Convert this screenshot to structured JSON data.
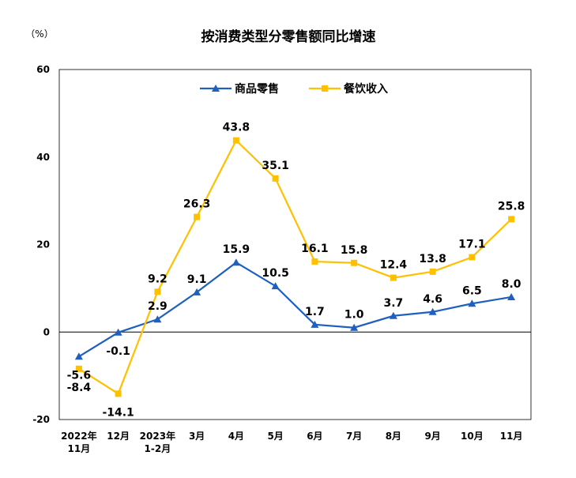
{
  "chart_data": {
    "type": "line",
    "title": "按消费类型分零售额同比增速",
    "y_unit": "（%）",
    "xlabel": "",
    "ylabel": "",
    "categories": [
      [
        "2022年",
        "11月"
      ],
      [
        "12月"
      ],
      [
        "2023年",
        "1-2月"
      ],
      [
        "3月"
      ],
      [
        "4月"
      ],
      [
        "5月"
      ],
      [
        "6月"
      ],
      [
        "7月"
      ],
      [
        "8月"
      ],
      [
        "9月"
      ],
      [
        "10月"
      ],
      [
        "11月"
      ]
    ],
    "ylim": [
      -20,
      60
    ],
    "yticks": [
      -20,
      0,
      20,
      40,
      60
    ],
    "grid": false,
    "legend_position": "top",
    "series": [
      {
        "name": "商品零售",
        "color": "#1F5FBF",
        "marker": "triangle",
        "values": [
          -5.6,
          -0.1,
          2.9,
          9.1,
          15.9,
          10.5,
          1.7,
          1.0,
          3.7,
          4.6,
          6.5,
          8.0
        ],
        "labels": [
          "-5.6",
          "-0.1",
          "2.9",
          "9.1",
          "15.9",
          "10.5",
          "1.7",
          "1.0",
          "3.7",
          "4.6",
          "6.5",
          "8.0"
        ]
      },
      {
        "name": "餐饮收入",
        "color": "#FFC000",
        "marker": "square",
        "values": [
          -8.4,
          -14.1,
          9.2,
          26.3,
          43.8,
          35.1,
          16.1,
          15.8,
          12.4,
          13.8,
          17.1,
          25.8
        ],
        "labels": [
          "-8.4",
          "-14.1",
          "9.2",
          "26.3",
          "43.8",
          "35.1",
          "16.1",
          "15.8",
          "12.4",
          "13.8",
          "17.1",
          "25.8"
        ]
      }
    ]
  }
}
